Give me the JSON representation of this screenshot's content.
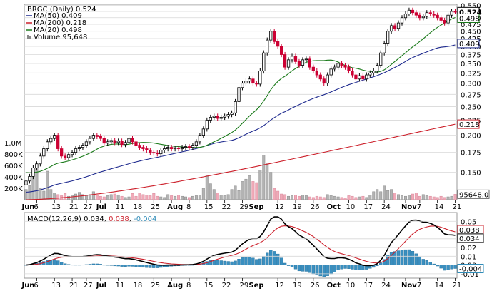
{
  "chart_data": {
    "type": "candlestick",
    "ticker_label": "BRGC (Daily) 0.524",
    "legend": [
      {
        "label": "MA(50) 0.409",
        "color": "#1f2b8f"
      },
      {
        "label": "MA(200) 0.218",
        "color": "#cc1f2a"
      },
      {
        "label": "MA(20) 0.498",
        "color": "#1a7a1a"
      },
      {
        "label": "Volume 95,648",
        "color": "#808080"
      }
    ],
    "price_axis": {
      "ticks": [
        "0.550",
        "0.525",
        "0.500",
        "0.475",
        "0.450",
        "0.425",
        "0.400",
        "0.375",
        "0.350",
        "0.325",
        "0.300",
        "0.275",
        "0.250",
        "0.225",
        "0.200",
        "0.175",
        "0.150"
      ],
      "scale": "log",
      "range": [
        0.121,
        0.555
      ]
    },
    "price_tags": [
      {
        "label": "0.524",
        "value": 0.524,
        "color": "#000000",
        "bold": true
      },
      {
        "label": "0.498",
        "value": 0.498,
        "color": "#1a7a1a"
      },
      {
        "label": "0.409",
        "value": 0.409,
        "color": "#1f2b8f"
      },
      {
        "label": "0.218",
        "value": 0.218,
        "color": "#cc1f2a"
      }
    ],
    "volume_axis": {
      "ticks": [
        "1.0M",
        "800K",
        "600K",
        "400K",
        "200K"
      ],
      "max": 1250000
    },
    "volume_tag": "95648.0",
    "x_axis": {
      "labels": [
        {
          "text": "Jun",
          "bold": true,
          "index": 0
        },
        {
          "text": "6",
          "bold": false,
          "index": 3
        },
        {
          "text": "13",
          "bold": false,
          "index": 8
        },
        {
          "text": "21",
          "bold": false,
          "index": 13
        },
        {
          "text": "27",
          "bold": false,
          "index": 17
        },
        {
          "text": "Jul",
          "bold": true,
          "index": 21
        },
        {
          "text": "11",
          "bold": false,
          "index": 26
        },
        {
          "text": "18",
          "bold": false,
          "index": 31
        },
        {
          "text": "25",
          "bold": false,
          "index": 36
        },
        {
          "text": "Aug",
          "bold": true,
          "index": 41
        },
        {
          "text": "8",
          "bold": false,
          "index": 46
        },
        {
          "text": "15",
          "bold": false,
          "index": 51
        },
        {
          "text": "22",
          "bold": false,
          "index": 56
        },
        {
          "text": "29",
          "bold": false,
          "index": 61
        },
        {
          "text": "Sep",
          "bold": true,
          "index": 64
        },
        {
          "text": "12",
          "bold": false,
          "index": 71
        },
        {
          "text": "19",
          "bold": false,
          "index": 76
        },
        {
          "text": "26",
          "bold": false,
          "index": 81
        },
        {
          "text": "Oct",
          "bold": true,
          "index": 86
        },
        {
          "text": "10",
          "bold": false,
          "index": 91
        },
        {
          "text": "17",
          "bold": false,
          "index": 96
        },
        {
          "text": "24",
          "bold": false,
          "index": 101
        },
        {
          "text": "Nov",
          "bold": true,
          "index": 107
        },
        {
          "text": "7",
          "bold": false,
          "index": 111
        },
        {
          "text": "14",
          "bold": false,
          "index": 116
        },
        {
          "text": "21",
          "bold": false,
          "index": 121
        }
      ]
    },
    "closes": [
      0.14,
      0.145,
      0.155,
      0.16,
      0.17,
      0.18,
      0.19,
      0.195,
      0.2,
      0.18,
      0.17,
      0.168,
      0.172,
      0.175,
      0.18,
      0.182,
      0.185,
      0.19,
      0.195,
      0.2,
      0.198,
      0.195,
      0.188,
      0.19,
      0.192,
      0.189,
      0.191,
      0.186,
      0.189,
      0.195,
      0.19,
      0.185,
      0.182,
      0.18,
      0.178,
      0.175,
      0.174,
      0.173,
      0.178,
      0.18,
      0.182,
      0.18,
      0.181,
      0.18,
      0.182,
      0.183,
      0.182,
      0.185,
      0.19,
      0.2,
      0.21,
      0.225,
      0.23,
      0.232,
      0.228,
      0.23,
      0.232,
      0.235,
      0.238,
      0.26,
      0.29,
      0.3,
      0.305,
      0.31,
      0.3,
      0.298,
      0.33,
      0.38,
      0.42,
      0.45,
      0.415,
      0.4,
      0.375,
      0.34,
      0.36,
      0.37,
      0.355,
      0.345,
      0.36,
      0.362,
      0.34,
      0.33,
      0.32,
      0.31,
      0.3,
      0.32,
      0.335,
      0.34,
      0.35,
      0.345,
      0.34,
      0.33,
      0.32,
      0.31,
      0.318,
      0.31,
      0.32,
      0.325,
      0.33,
      0.345,
      0.38,
      0.41,
      0.45,
      0.47,
      0.46,
      0.48,
      0.5,
      0.515,
      0.53,
      0.52,
      0.51,
      0.5,
      0.505,
      0.52,
      0.515,
      0.51,
      0.5,
      0.49,
      0.48,
      0.51,
      0.525,
      0.524
    ],
    "volumes": [
      180000,
      250000,
      420000,
      620000,
      200000,
      150000,
      500000,
      180000,
      120000,
      90000,
      70000,
      110000,
      60000,
      80000,
      100000,
      130000,
      90000,
      70000,
      90000,
      140000,
      80000,
      60000,
      50000,
      70000,
      90000,
      100000,
      80000,
      60000,
      40000,
      50000,
      110000,
      60000,
      120000,
      90000,
      80000,
      70000,
      110000,
      60000,
      50000,
      40000,
      90000,
      70000,
      60000,
      80000,
      60000,
      50000,
      40000,
      60000,
      70000,
      80000,
      200000,
      430000,
      280000,
      180000,
      120000,
      80000,
      70000,
      90000,
      180000,
      240000,
      160000,
      320000,
      360000,
      420000,
      320000,
      300000,
      520000,
      780000,
      630000,
      480000,
      200000,
      150000,
      100000,
      90000,
      60000,
      70000,
      80000,
      60000,
      80000,
      70000,
      50000,
      40000,
      60000,
      50000,
      40000,
      90000,
      70000,
      60000,
      50000,
      40000,
      30000,
      70000,
      60000,
      40000,
      50000,
      60000,
      40000,
      80000,
      140000,
      180000,
      140000,
      240000,
      160000,
      180000,
      120000,
      90000,
      70000,
      60000,
      80000,
      100000,
      120000,
      60000,
      90000,
      70000,
      60000,
      50000,
      40000,
      60000,
      40000,
      50000,
      60000,
      95648
    ],
    "ma_start_values": {
      "ma20": 0.15,
      "ma50": 0.128,
      "ma200": 0.121
    },
    "macd_panel": {
      "title": "MACD(12,26,9) 0.034, 0.038, -0.004",
      "title_parts": [
        {
          "text": "MACD(12,26,9) ",
          "color": "#000000"
        },
        {
          "text": "0.034",
          "color": "#000000"
        },
        {
          "text": ", ",
          "color": "#000000"
        },
        {
          "text": "0.038",
          "color": "#cc1f2a"
        },
        {
          "text": ", ",
          "color": "#000000"
        },
        {
          "text": "-0.004",
          "color": "#2e8bb8"
        }
      ],
      "ticks": [
        "0.05",
        "0.04",
        "0.03",
        "0.02",
        "0.01",
        "0.00",
        "-0.01"
      ],
      "range": [
        -0.015,
        0.06
      ],
      "tags": [
        {
          "label": "0.038",
          "value": 0.038,
          "color": "#cc1f2a"
        },
        {
          "label": "0.034",
          "value": 0.034,
          "color": "#000000"
        },
        {
          "label": "-0.004",
          "value": -0.004,
          "color": "#2e8bb8"
        }
      ]
    },
    "colors": {
      "up": "#000000",
      "down": "#cc0033",
      "ma20": "#1a7a1a",
      "ma50": "#1f2b8f",
      "ma200": "#cc1f2a",
      "volume_up": "#b3b3b3",
      "volume_down": "#f0aab8",
      "macd_line": "#000000",
      "signal_line": "#cc1f2a",
      "histogram": "#3a8fc0",
      "grid": "#d8d8d8"
    }
  }
}
